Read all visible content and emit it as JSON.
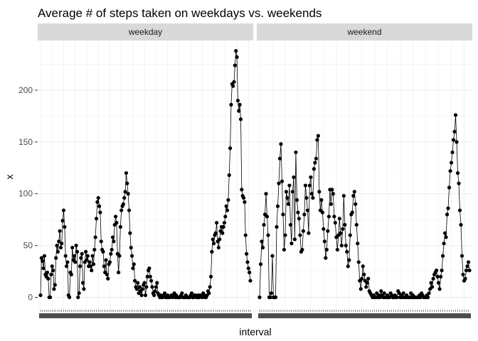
{
  "chart_data": {
    "type": "line",
    "title": "Average # of steps taken on weekdays vs. weekends",
    "xlabel": "interval",
    "ylabel": "x",
    "ylim": [
      -12,
      248
    ],
    "yticks": [
      0,
      50,
      100,
      150,
      200
    ],
    "grid": true,
    "legend": "none",
    "markers": true,
    "panels": [
      {
        "label": "weekday",
        "values": [
          2,
          38,
          35,
          28,
          40,
          22,
          20,
          24,
          18,
          0,
          0,
          22,
          30,
          26,
          8,
          12,
          38,
          50,
          44,
          54,
          64,
          48,
          52,
          74,
          84,
          68,
          40,
          30,
          34,
          2,
          0,
          24,
          22,
          48,
          36,
          40,
          34,
          50,
          44,
          0,
          4,
          30,
          38,
          42,
          14,
          8,
          34,
          44,
          36,
          40,
          30,
          34,
          30,
          26,
          40,
          32,
          46,
          58,
          76,
          92,
          96,
          88,
          82,
          54,
          46,
          44,
          30,
          24,
          36,
          22,
          18,
          32,
          34,
          42,
          46,
          58,
          54,
          70,
          78,
          72,
          42,
          24,
          40,
          68,
          84,
          88,
          90,
          96,
          102,
          120,
          110,
          100,
          84,
          62,
          48,
          40,
          28,
          32,
          16,
          10,
          8,
          14,
          4,
          10,
          6,
          2,
          8,
          12,
          14,
          2,
          10,
          20,
          26,
          28,
          20,
          16,
          10,
          4,
          2,
          6,
          10,
          14,
          4,
          2,
          0,
          2,
          0,
          0,
          2,
          4,
          0,
          0,
          2,
          0,
          0,
          1,
          2,
          0,
          2,
          4,
          0,
          2,
          0,
          0,
          0,
          0,
          2,
          4,
          0,
          0,
          0,
          2,
          0,
          0,
          0,
          0,
          2,
          4,
          0,
          0,
          2,
          2,
          0,
          0,
          2,
          0,
          2,
          1,
          0,
          4,
          2,
          0,
          0,
          2,
          6,
          4,
          10,
          20,
          44,
          56,
          52,
          60,
          62,
          72,
          54,
          48,
          56,
          64,
          68,
          62,
          68,
          72,
          78,
          88,
          84,
          94,
          118,
          144,
          186,
          206,
          204,
          208,
          224,
          238,
          232,
          190,
          180,
          186,
          172,
          104,
          98,
          96,
          92,
          60,
          42,
          34,
          28,
          24,
          16
        ]
      },
      {
        "label": "weekend",
        "values": [
          0,
          32,
          54,
          48,
          70,
          80,
          100,
          78,
          60,
          0,
          0,
          4,
          40,
          0,
          0,
          0,
          68,
          88,
          110,
          134,
          148,
          112,
          80,
          46,
          60,
          102,
          96,
          90,
          108,
          70,
          52,
          102,
          116,
          56,
          140,
          94,
          82,
          76,
          60,
          44,
          46,
          64,
          80,
          108,
          96,
          84,
          62,
          108,
          116,
          100,
          96,
          124,
          130,
          134,
          152,
          156,
          102,
          84,
          94,
          82,
          66,
          54,
          38,
          46,
          64,
          78,
          104,
          90,
          104,
          100,
          78,
          72,
          58,
          46,
          60,
          76,
          62,
          50,
          66,
          98,
          70,
          50,
          44,
          30,
          36,
          60,
          80,
          82,
          98,
          102,
          90,
          70,
          52,
          34,
          16,
          8,
          18,
          30,
          22,
          16,
          10,
          14,
          18,
          6,
          4,
          2,
          0,
          2,
          0,
          0,
          4,
          0,
          2,
          0,
          6,
          2,
          0,
          4,
          0,
          0,
          2,
          0,
          0,
          4,
          2,
          0,
          0,
          2,
          0,
          0,
          6,
          4,
          0,
          2,
          0,
          4,
          0,
          0,
          2,
          0,
          0,
          0,
          4,
          0,
          2,
          0,
          0,
          0,
          0,
          0,
          2,
          0,
          4,
          2,
          0,
          0,
          0,
          2,
          0,
          4,
          8,
          14,
          10,
          18,
          22,
          24,
          26,
          20,
          14,
          8,
          20,
          26,
          40,
          52,
          62,
          58,
          80,
          86,
          106,
          122,
          130,
          140,
          152,
          160,
          176,
          150,
          120,
          110,
          84,
          70,
          40,
          22,
          16,
          18,
          26,
          30,
          34,
          26
        ]
      }
    ]
  }
}
